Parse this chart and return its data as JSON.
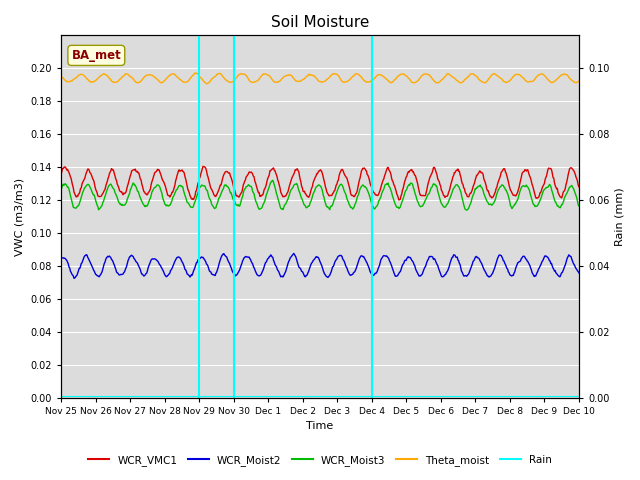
{
  "title": "Soil Moisture",
  "ylabel_left": "VWC (m3/m3)",
  "ylabel_right": "Rain (mm)",
  "xlabel": "Time",
  "bg_color": "#dcdcdc",
  "fig_color": "#ffffff",
  "ylim_left": [
    0.0,
    0.22
  ],
  "ylim_right": [
    0.0,
    0.11
  ],
  "yticks_left": [
    0.0,
    0.02,
    0.04,
    0.06,
    0.08,
    0.1,
    0.12,
    0.14,
    0.16,
    0.18,
    0.2
  ],
  "yticks_right": [
    0.0,
    0.02,
    0.04,
    0.06,
    0.08,
    0.1
  ],
  "xtick_labels": [
    "Nov 25",
    "Nov 26",
    "Nov 27",
    "Nov 28",
    "Nov 29",
    "Nov 30",
    "Dec 1",
    "Dec 2",
    "Dec 3",
    "Dec 4",
    "Dec 5",
    "Dec 6",
    "Dec 7",
    "Dec 8",
    "Dec 9",
    "Dec 10"
  ],
  "vline_positions": [
    4,
    5,
    9
  ],
  "vline_color": "cyan",
  "annotation_text": "BA_met",
  "series_colors": {
    "WCR_VMC1": "#dd0000",
    "WCR_Moist2": "#0000dd",
    "WCR_Moist3": "#00bb00",
    "Theta_moist": "#ffaa00",
    "Rain": "cyan"
  },
  "wcr_vmc1": {
    "base": 0.1305,
    "amp": 0.008,
    "freq": 1.5,
    "phase": 0.3
  },
  "wcr_moist2": {
    "base": 0.08,
    "amp": 0.006,
    "freq": 1.5,
    "phase": 1.0
  },
  "wcr_moist3": {
    "base": 0.1225,
    "amp": 0.007,
    "freq": 1.5,
    "phase": 0.6
  },
  "theta_moist": {
    "base": 0.194,
    "amp": 0.0025,
    "freq": 1.5,
    "phase": 2.5
  },
  "rain_base": 0.0005
}
